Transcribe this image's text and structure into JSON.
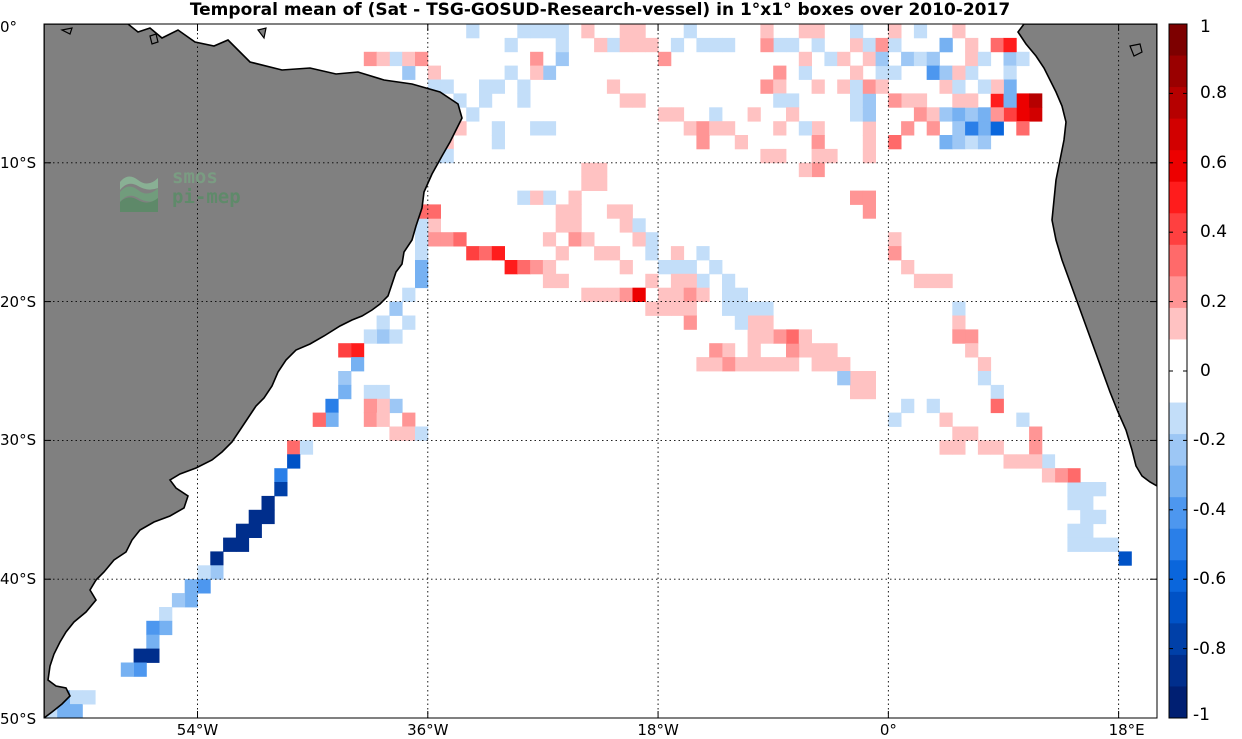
{
  "title": "Temporal mean of (Sat - TSG-GOSUD-Research-vessel) in 1°x1° boxes over 2010-2017",
  "logo": {
    "line1": "smos",
    "line2": "pi-mep"
  },
  "y_labels": [
    {
      "text": "0°",
      "lat": 0
    },
    {
      "text": "10°S",
      "lat": -10
    },
    {
      "text": "20°S",
      "lat": -20
    },
    {
      "text": "30°S",
      "lat": -30
    },
    {
      "text": "40°S",
      "lat": -40
    },
    {
      "text": "50°S",
      "lat": -50
    }
  ],
  "x_labels": [
    {
      "text": "54°W",
      "lon": -54
    },
    {
      "text": "36°W",
      "lon": -36
    },
    {
      "text": "18°W",
      "lon": -18
    },
    {
      "text": "0°",
      "lon": 0
    },
    {
      "text": "18°E",
      "lon": 18
    }
  ],
  "colorbar": {
    "min": -1,
    "max": 1,
    "labels": [
      "1",
      "0.8",
      "0.6",
      "0.4",
      "0.2",
      "0",
      "-0.2",
      "-0.4",
      "-0.6",
      "-0.8",
      "-1"
    ],
    "colors_top_to_bottom": [
      "#7d0000",
      "#9a0000",
      "#b60000",
      "#d20000",
      "#ed0000",
      "#ff1c1c",
      "#ff4040",
      "#ff6a6a",
      "#ff9595",
      "#ffc2c2",
      "#ffffff",
      "#ffffff",
      "#c3def9",
      "#9dc7f5",
      "#76b1f2",
      "#4d97ef",
      "#2a7fe8",
      "#0a66dc",
      "#0052c6",
      "#0040a8",
      "#002e8c",
      "#001f72"
    ]
  },
  "colors": {
    "land": "#808080",
    "coast": "#000000",
    "grid": "#000000",
    "ocean": "#ffffff"
  },
  "cells": [
    [
      2,
      -18,
      -2
    ],
    [
      -1,
      -34,
      -5
    ],
    [
      -1,
      -32,
      -5
    ],
    [
      -1,
      -29,
      -5
    ],
    [
      1,
      -20,
      -5
    ],
    [
      2,
      -9,
      -3
    ],
    [
      -1,
      -3,
      -5
    ],
    [
      -1,
      3,
      -3
    ],
    [
      -1,
      -14,
      -6
    ],
    [
      1,
      -35,
      -6
    ],
    [
      2,
      -36,
      -6
    ],
    [
      -1,
      -33,
      -6
    ],
    [
      -2,
      -36,
      -7
    ],
    [
      -1,
      -31,
      -7
    ],
    [
      1,
      -34,
      -7
    ],
    [
      1,
      -35,
      -8
    ],
    [
      -1,
      -36,
      -8
    ],
    [
      -2,
      -36,
      -9
    ],
    [
      -1,
      -27,
      -7
    ],
    [
      -1,
      -28,
      -7
    ],
    [
      -1,
      -31,
      -8
    ],
    [
      -1,
      -35,
      -9
    ],
    [
      1,
      -18,
      -6
    ],
    [
      1,
      -17,
      -6
    ],
    [
      1,
      -16,
      -7
    ],
    [
      2,
      -15,
      -7
    ],
    [
      1,
      -14,
      -7
    ],
    [
      2,
      -15,
      -8
    ],
    [
      1,
      -12,
      -8
    ],
    [
      1,
      -13,
      -7
    ],
    [
      1,
      -11,
      -6
    ],
    [
      1,
      -6,
      -7
    ],
    [
      2,
      -6,
      -8
    ],
    [
      1,
      -6,
      -9
    ],
    [
      2,
      -6,
      -10
    ],
    [
      1,
      -7,
      -10
    ],
    [
      1,
      -2,
      -6
    ],
    [
      1,
      -2,
      -7
    ],
    [
      1,
      -2,
      -8
    ],
    [
      1,
      -2,
      -9
    ],
    [
      -1,
      -3,
      -6
    ],
    [
      -2,
      -2,
      -5
    ],
    [
      -2,
      -2,
      -6
    ],
    [
      1,
      1,
      -5
    ],
    [
      1,
      2,
      -5
    ],
    [
      2,
      2,
      -6
    ],
    [
      2,
      1,
      -7
    ],
    [
      3,
      0,
      -8
    ],
    [
      1,
      3,
      -6
    ],
    [
      2,
      3,
      -7
    ],
    [
      -2,
      4,
      -6
    ],
    [
      -3,
      5,
      -6
    ],
    [
      -2,
      5,
      -7
    ],
    [
      -3,
      4,
      -8
    ],
    [
      -2,
      5,
      -8
    ],
    [
      -1,
      6,
      -8
    ],
    [
      -2,
      7,
      -8
    ],
    [
      -3,
      7,
      -7
    ],
    [
      -5,
      6,
      -7
    ],
    [
      -2,
      6,
      -6
    ],
    [
      -3,
      7,
      -6
    ],
    [
      5,
      8,
      -5
    ],
    [
      5,
      9,
      -5
    ],
    [
      6,
      10,
      -5
    ],
    [
      7,
      11,
      -6
    ],
    [
      6,
      10,
      -6
    ],
    [
      8,
      11,
      -5
    ],
    [
      4,
      9,
      -6
    ],
    [
      3,
      10,
      -7
    ],
    [
      -6,
      8,
      -7
    ],
    [
      -3,
      9,
      -5
    ],
    [
      2,
      8,
      -6
    ],
    [
      1,
      5,
      -5
    ],
    [
      1,
      6,
      -5
    ],
    [
      1,
      4,
      -4
    ],
    [
      -1,
      5,
      -4
    ],
    [
      -1,
      6,
      -3
    ],
    [
      -1,
      -7,
      -3
    ],
    [
      1,
      -6,
      -4
    ],
    [
      2,
      -10,
      -4
    ],
    [
      1,
      -9,
      -4
    ],
    [
      1,
      -4,
      -4
    ],
    [
      -1,
      -3,
      -4
    ],
    [
      -1,
      -1,
      -3
    ],
    [
      -1,
      0,
      -3
    ],
    [
      1,
      -22,
      -4
    ],
    [
      1,
      -21,
      -5
    ],
    [
      -1,
      -32,
      -4
    ],
    [
      -1,
      -31,
      -4
    ],
    [
      -2,
      -27,
      -3
    ],
    [
      -2,
      -26,
      -2
    ],
    [
      -1,
      -26,
      -1
    ],
    [
      2,
      -28,
      -2
    ],
    [
      1,
      -28,
      -3
    ],
    [
      -1,
      -30,
      -3
    ],
    [
      -1,
      -29,
      -4
    ],
    [
      -1,
      -22,
      -1
    ],
    [
      1,
      -23,
      -1
    ],
    [
      -1,
      -17,
      -1
    ],
    [
      -1,
      -15,
      -1
    ],
    [
      -1,
      -14,
      -1
    ],
    [
      -1,
      -13,
      -1
    ],
    [
      -1,
      -9,
      -1
    ],
    [
      -1,
      -8,
      -1
    ],
    [
      -1,
      -6,
      -1
    ],
    [
      1,
      -20,
      -1
    ],
    [
      1,
      -21,
      -1
    ],
    [
      1,
      -19,
      -1
    ],
    [
      2,
      -10,
      -1
    ],
    [
      1,
      -3,
      -1
    ],
    [
      -1,
      -2,
      -1
    ],
    [
      2,
      -1,
      -1
    ],
    [
      -1,
      0,
      -1
    ],
    [
      -2,
      4,
      -1
    ],
    [
      1,
      6,
      -1
    ],
    [
      -2,
      -38,
      -3
    ],
    [
      -1,
      -39,
      -2
    ],
    [
      2,
      -41,
      -2
    ],
    [
      1,
      -40,
      -2
    ],
    [
      1,
      -38,
      -2
    ],
    [
      2,
      -37,
      -2
    ],
    [
      1,
      -36,
      -3
    ],
    [
      -1,
      -36,
      -4
    ],
    [
      -1,
      -35,
      -4
    ],
    [
      1,
      -7,
      -2
    ],
    [
      1,
      -2,
      -2
    ],
    [
      -1,
      -5,
      -2
    ],
    [
      1,
      -4,
      -2
    ],
    [
      -2,
      -1,
      -2
    ],
    [
      -2,
      1,
      -2
    ],
    [
      -1,
      2,
      -2
    ],
    [
      -2,
      3,
      -2
    ],
    [
      -4,
      3,
      -3
    ],
    [
      -2,
      4,
      -3
    ],
    [
      1,
      5,
      -3
    ],
    [
      1,
      6,
      -2
    ],
    [
      -1,
      7,
      -2
    ],
    [
      -2,
      9,
      -2
    ],
    [
      -1,
      10,
      -2
    ],
    [
      -3,
      4,
      -1
    ],
    [
      3,
      8,
      -1
    ],
    [
      5,
      9,
      -1
    ],
    [
      -1,
      9,
      -3
    ],
    [
      -3,
      9,
      -4
    ],
    [
      1,
      8,
      -4
    ],
    [
      -1,
      7,
      -4
    ],
    [
      -1,
      -33,
      0
    ],
    [
      -1,
      -30,
      -1
    ],
    [
      -1,
      -29,
      0
    ],
    [
      -1,
      -28,
      0
    ],
    [
      -1,
      -27,
      0
    ],
    [
      -1,
      -26,
      0
    ],
    [
      1,
      -24,
      0
    ],
    [
      1,
      -21,
      0
    ],
    [
      1,
      -20,
      0
    ],
    [
      -1,
      -16,
      0
    ],
    [
      1,
      -10,
      0
    ],
    [
      1,
      -7,
      0
    ],
    [
      1,
      -6,
      0
    ],
    [
      -1,
      -3,
      0
    ],
    [
      1,
      0,
      0
    ],
    [
      -1,
      2,
      0
    ],
    [
      1,
      5,
      0
    ],
    [
      1,
      -10,
      -9
    ],
    [
      1,
      -9,
      -9
    ],
    [
      1,
      -5,
      -9
    ],
    [
      1,
      -24,
      -10
    ],
    [
      1,
      -23,
      -10
    ],
    [
      1,
      -24,
      -11
    ],
    [
      1,
      -23,
      -11
    ],
    [
      1,
      -25,
      -12
    ],
    [
      -1,
      -27,
      -12
    ],
    [
      -1,
      -29,
      -12
    ],
    [
      1,
      -28,
      -12
    ],
    [
      2,
      -3,
      -12
    ],
    [
      2,
      -2,
      -12
    ],
    [
      2,
      -2,
      -13
    ],
    [
      1,
      -25,
      -13
    ],
    [
      1,
      -21,
      -13
    ],
    [
      1,
      -26,
      -13
    ],
    [
      1,
      -22,
      -13
    ],
    [
      1,
      -21,
      -14
    ],
    [
      -1,
      -20,
      -14
    ],
    [
      -1,
      -20,
      -15
    ],
    [
      -1,
      -19,
      -15
    ],
    [
      1,
      -20,
      -15
    ],
    [
      -1,
      -19,
      -16
    ],
    [
      1,
      -26,
      -14
    ],
    [
      1,
      -25,
      -14
    ],
    [
      2,
      -25,
      -15
    ],
    [
      1,
      -24,
      -15
    ],
    [
      1,
      -27,
      -15
    ],
    [
      1,
      -26,
      -16
    ],
    [
      1,
      -23,
      -16
    ],
    [
      1,
      -22,
      -16
    ],
    [
      1,
      -21,
      -17
    ],
    [
      1,
      -17,
      -16
    ],
    [
      -1,
      -18,
      -17
    ],
    [
      -1,
      -17,
      -17
    ],
    [
      -1,
      -16,
      -17
    ],
    [
      -1,
      -15,
      -16
    ],
    [
      -1,
      -15,
      -18
    ],
    [
      -1,
      -14,
      -17
    ],
    [
      -1,
      -13,
      -18
    ],
    [
      -1,
      -12,
      -19
    ],
    [
      1,
      -16,
      -18
    ],
    [
      1,
      -17,
      -18
    ],
    [
      1,
      -17,
      -19
    ],
    [
      1,
      -18,
      -19
    ],
    [
      1,
      -19,
      -18
    ],
    [
      2,
      -16,
      -19
    ],
    [
      1,
      -15,
      -19
    ],
    [
      1,
      -16,
      -20
    ],
    [
      1,
      -17,
      -20
    ],
    [
      1,
      -19,
      -20
    ],
    [
      1,
      -20,
      -19
    ],
    [
      1,
      -22,
      -19
    ],
    [
      1,
      -23,
      -19
    ],
    [
      1,
      -24,
      -19
    ],
    [
      2,
      -21,
      -19
    ],
    [
      6,
      -20,
      -19
    ],
    [
      1,
      -18,
      -20
    ],
    [
      -1,
      -12,
      -20
    ],
    [
      -1,
      -11,
      -20
    ],
    [
      -1,
      -10,
      -20
    ],
    [
      -1,
      -13,
      -19
    ],
    [
      2,
      -16,
      -21
    ],
    [
      1,
      0,
      -15
    ],
    [
      2,
      0,
      -16
    ],
    [
      1,
      1,
      -17
    ],
    [
      1,
      2,
      -18
    ],
    [
      1,
      3,
      -18
    ],
    [
      1,
      4,
      -18
    ],
    [
      -1,
      5,
      -20
    ],
    [
      1,
      5,
      -21
    ],
    [
      2,
      5,
      -22
    ],
    [
      2,
      6,
      -22
    ],
    [
      1,
      6,
      -23
    ],
    [
      1,
      7,
      -24
    ],
    [
      -1,
      7,
      -25
    ],
    [
      -1,
      8,
      -26
    ],
    [
      3,
      8,
      -27
    ],
    [
      -1,
      10,
      -28
    ],
    [
      2,
      11,
      -29
    ],
    [
      2,
      11,
      -30
    ],
    [
      -1,
      12,
      -31
    ],
    [
      -1,
      13,
      -32
    ],
    [
      -1,
      14,
      -33
    ],
    [
      -1,
      15,
      -33
    ],
    [
      -1,
      16,
      -33
    ],
    [
      -1,
      15,
      -34
    ],
    [
      -1,
      14,
      -34
    ],
    [
      -1,
      15,
      -35
    ],
    [
      -1,
      16,
      -35
    ],
    [
      -1,
      15,
      -36
    ],
    [
      -1,
      14,
      -36
    ],
    [
      -1,
      14,
      -37
    ],
    [
      -1,
      15,
      -37
    ],
    [
      -1,
      16,
      -37
    ],
    [
      -1,
      17,
      -37
    ],
    [
      -7,
      18,
      -38
    ],
    [
      3,
      14,
      -32
    ],
    [
      2,
      13,
      -32
    ],
    [
      1,
      10,
      -31
    ],
    [
      1,
      11,
      -31
    ],
    [
      1,
      12,
      -32
    ],
    [
      1,
      9,
      -31
    ],
    [
      1,
      8,
      -30
    ],
    [
      1,
      7,
      -30
    ],
    [
      1,
      6,
      -29
    ],
    [
      1,
      5,
      -29
    ],
    [
      1,
      4,
      -28
    ],
    [
      1,
      5,
      -30
    ],
    [
      1,
      4,
      -30
    ],
    [
      -1,
      1,
      -27
    ],
    [
      -1,
      3,
      -27
    ],
    [
      -1,
      0,
      -28
    ],
    [
      1,
      -3,
      -26
    ],
    [
      1,
      -3,
      -25
    ],
    [
      1,
      -2,
      -25
    ],
    [
      1,
      -2,
      -26
    ],
    [
      1,
      -4,
      -24
    ],
    [
      -2,
      -4,
      -25
    ],
    [
      1,
      -5,
      -24
    ],
    [
      1,
      -6,
      -24
    ],
    [
      1,
      -7,
      -23
    ],
    [
      1,
      -8,
      -24
    ],
    [
      2,
      -8,
      -23
    ],
    [
      3,
      -8,
      -22
    ],
    [
      2,
      -9,
      -22
    ],
    [
      1,
      -10,
      -22
    ],
    [
      1,
      -9,
      -24
    ],
    [
      1,
      -10,
      -24
    ],
    [
      1,
      -11,
      -24
    ],
    [
      1,
      -11,
      -23
    ],
    [
      1,
      -12,
      -24
    ],
    [
      1,
      -13,
      -23
    ],
    [
      2,
      -13,
      -24
    ],
    [
      1,
      -14,
      -24
    ],
    [
      1,
      -15,
      -24
    ],
    [
      2,
      -14,
      -23
    ],
    [
      1,
      -11,
      -22
    ],
    [
      1,
      -11,
      -21
    ],
    [
      1,
      -10,
      -21
    ],
    [
      -1,
      -12,
      -21
    ],
    [
      1,
      -7,
      -22
    ],
    [
      1,
      -5,
      -23
    ],
    [
      1,
      -6,
      -23
    ],
    [
      -1,
      -13,
      -20
    ],
    [
      1,
      -36,
      -14
    ],
    [
      -1,
      -37,
      -14
    ],
    [
      2,
      -36,
      -15
    ],
    [
      2,
      -35,
      -15
    ],
    [
      3,
      -34,
      -15
    ],
    [
      4,
      -33,
      -16
    ],
    [
      3,
      -32,
      -16
    ],
    [
      5,
      -31,
      -16
    ],
    [
      5,
      -30,
      -17
    ],
    [
      3,
      -29,
      -17
    ],
    [
      2,
      -28,
      -17
    ],
    [
      1,
      -27,
      -17
    ],
    [
      1,
      -27,
      -18
    ],
    [
      1,
      -26,
      -18
    ],
    [
      3,
      -36,
      -13
    ],
    [
      3,
      -37,
      -13
    ],
    [
      -1,
      -37,
      -15
    ],
    [
      -1,
      -37,
      -16
    ],
    [
      -3,
      -37,
      -17
    ],
    [
      -3,
      -37,
      -18
    ],
    [
      -1,
      -38,
      -19
    ],
    [
      -2,
      -39,
      -20
    ],
    [
      -1,
      -38,
      -21
    ],
    [
      -1,
      -40,
      -21
    ],
    [
      -2,
      -40,
      -22
    ],
    [
      -1,
      -39,
      -22
    ],
    [
      -1,
      -41,
      -22
    ],
    [
      5,
      -42,
      -23
    ],
    [
      4,
      -43,
      -23
    ],
    [
      -3,
      -42,
      -24
    ],
    [
      -2,
      -43,
      -25
    ],
    [
      -3,
      -43,
      -26
    ],
    [
      -5,
      -44,
      -27
    ],
    [
      -3,
      -44,
      -28
    ],
    [
      3,
      -45,
      -28
    ],
    [
      -1,
      -41,
      -26
    ],
    [
      -1,
      -40,
      -26
    ],
    [
      -2,
      -39,
      -27
    ],
    [
      1,
      -40,
      -27
    ],
    [
      2,
      -41,
      -27
    ],
    [
      2,
      -41,
      -28
    ],
    [
      1,
      -40,
      -28
    ],
    [
      2,
      -38,
      -28
    ],
    [
      1,
      -38,
      -29
    ],
    [
      1,
      -39,
      -29
    ],
    [
      -1,
      -37,
      -29
    ],
    [
      3,
      -47,
      -30
    ],
    [
      -1,
      -46,
      -30
    ],
    [
      -7,
      -47,
      -31
    ],
    [
      -5,
      -48,
      -32
    ],
    [
      -8,
      -48,
      -33
    ],
    [
      -9,
      -49,
      -34
    ],
    [
      -9,
      -49,
      -35
    ],
    [
      -9,
      -50,
      -35
    ],
    [
      -9,
      -50,
      -36
    ],
    [
      -9,
      -51,
      -36
    ],
    [
      -9,
      -51,
      -37
    ],
    [
      -9,
      -52,
      -37
    ],
    [
      -9,
      -53,
      -38
    ],
    [
      -2,
      -53,
      -39
    ],
    [
      -1,
      -54,
      -39
    ],
    [
      -4,
      -54,
      -40
    ],
    [
      -3,
      -55,
      -40
    ],
    [
      -3,
      -55,
      -41
    ],
    [
      -2,
      -56,
      -41
    ],
    [
      -1,
      -57,
      -42
    ],
    [
      -3,
      -57,
      -43
    ],
    [
      -4,
      -58,
      -43
    ],
    [
      -3,
      -58,
      -44
    ],
    [
      -9,
      -59,
      -45
    ],
    [
      -9,
      -58,
      -45
    ],
    [
      -4,
      -59,
      -46
    ],
    [
      -3,
      -60,
      -46
    ],
    [
      -1,
      -64,
      -48
    ],
    [
      -3,
      -65,
      -48
    ],
    [
      -3,
      -64,
      -49
    ],
    [
      -3,
      -65,
      -49
    ],
    [
      1,
      -65,
      -50
    ],
    [
      -1,
      -63,
      -48
    ],
    [
      -1,
      -66,
      -49
    ],
    [
      2,
      -2,
      -4
    ],
    [
      1,
      -1,
      -4
    ],
    [
      2,
      0,
      -5
    ],
    [
      1,
      -3,
      -3
    ],
    [
      -1,
      -9,
      -5
    ],
    [
      -1,
      -8,
      -5
    ],
    [
      1,
      -8,
      -6
    ],
    [
      1,
      -9,
      -7
    ],
    [
      -1,
      -7,
      -7
    ]
  ]
}
